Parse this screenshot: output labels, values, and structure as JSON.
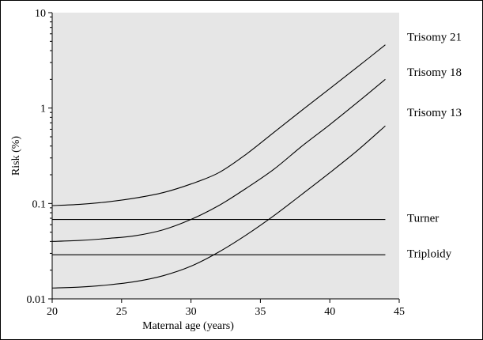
{
  "chart_data": {
    "type": "line",
    "xlabel": "Maternal age (years)",
    "ylabel": "Risk (%)",
    "xlim": [
      20,
      45
    ],
    "ylim": [
      0.01,
      10
    ],
    "yscale": "log",
    "x_ticks": [
      20,
      25,
      30,
      35,
      40,
      45
    ],
    "x_tick_labels": [
      "20",
      "25",
      "30",
      "35",
      "40",
      "45"
    ],
    "y_ticks": [
      0.01,
      0.1,
      1,
      10
    ],
    "y_tick_labels": [
      "0.01",
      "0.1",
      "1",
      "10"
    ],
    "grid": false,
    "plot_background": "#e6e6e6",
    "line_color": "#000000",
    "legend": "direct labels right of plot",
    "series": [
      {
        "name": "Trisomy 21",
        "x": [
          20,
          22,
          24,
          26,
          28,
          30,
          32,
          34,
          36,
          38,
          40,
          42,
          44
        ],
        "y": [
          0.095,
          0.098,
          0.104,
          0.114,
          0.13,
          0.16,
          0.21,
          0.33,
          0.56,
          0.95,
          1.6,
          2.7,
          4.6
        ]
      },
      {
        "name": "Trisomy 18",
        "x": [
          20,
          22,
          24,
          26,
          28,
          30,
          32,
          34,
          36,
          38,
          40,
          42,
          44
        ],
        "y": [
          0.04,
          0.041,
          0.043,
          0.046,
          0.053,
          0.068,
          0.095,
          0.145,
          0.23,
          0.4,
          0.67,
          1.15,
          2.0
        ]
      },
      {
        "name": "Trisomy 13",
        "x": [
          20,
          22,
          24,
          26,
          28,
          30,
          32,
          34,
          36,
          38,
          40,
          42,
          44
        ],
        "y": [
          0.013,
          0.0133,
          0.014,
          0.0152,
          0.0175,
          0.022,
          0.031,
          0.047,
          0.075,
          0.125,
          0.21,
          0.36,
          0.65
        ]
      },
      {
        "name": "Turner",
        "x": [
          20,
          44
        ],
        "y": [
          0.068,
          0.068
        ]
      },
      {
        "name": "Triploidy",
        "x": [
          20,
          44
        ],
        "y": [
          0.029,
          0.029
        ]
      }
    ],
    "label_positions_y": {
      "Trisomy 21": 5.6,
      "Trisomy 18": 2.4,
      "Trisomy 13": 0.9,
      "Turner": 0.071,
      "Triploidy": 0.03
    }
  }
}
